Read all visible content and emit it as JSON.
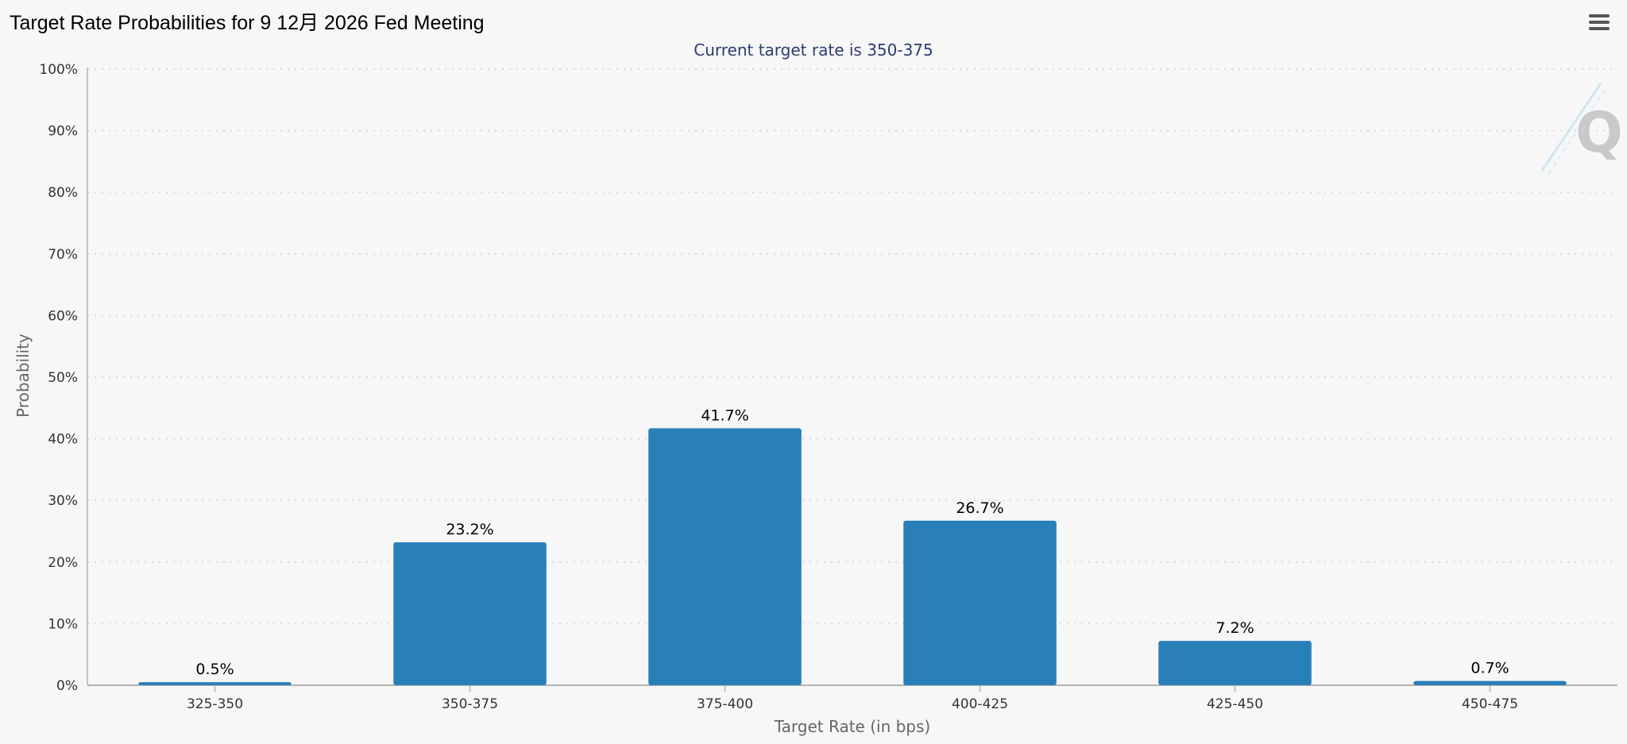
{
  "chart_data": {
    "type": "bar",
    "title": "Target Rate Probabilities for 9 12月 2026 Fed Meeting",
    "subtitle": "Current target rate is 350-375",
    "xlabel": "Target Rate (in bps)",
    "ylabel": "Probability",
    "categories": [
      "325-350",
      "350-375",
      "375-400",
      "400-425",
      "425-450",
      "450-475"
    ],
    "values": [
      0.5,
      23.2,
      41.7,
      26.7,
      7.2,
      0.7
    ],
    "data_labels": [
      "0.5%",
      "23.2%",
      "41.7%",
      "26.7%",
      "7.2%",
      "0.7%"
    ],
    "ylim": [
      0,
      100
    ],
    "yticks": [
      0,
      10,
      20,
      30,
      40,
      50,
      60,
      70,
      80,
      90,
      100
    ],
    "ytick_labels": [
      "0%",
      "10%",
      "20%",
      "30%",
      "40%",
      "50%",
      "60%",
      "70%",
      "80%",
      "90%",
      "100%"
    ],
    "grid": true,
    "legend": "none",
    "bar_color": "#2980b9",
    "grid_color": "#d9d9d9",
    "axis_color": "#b3b3b3",
    "watermark_icon": "q-logo-icon"
  },
  "toolbar": {
    "menu_icon": "hamburger-menu-icon"
  }
}
